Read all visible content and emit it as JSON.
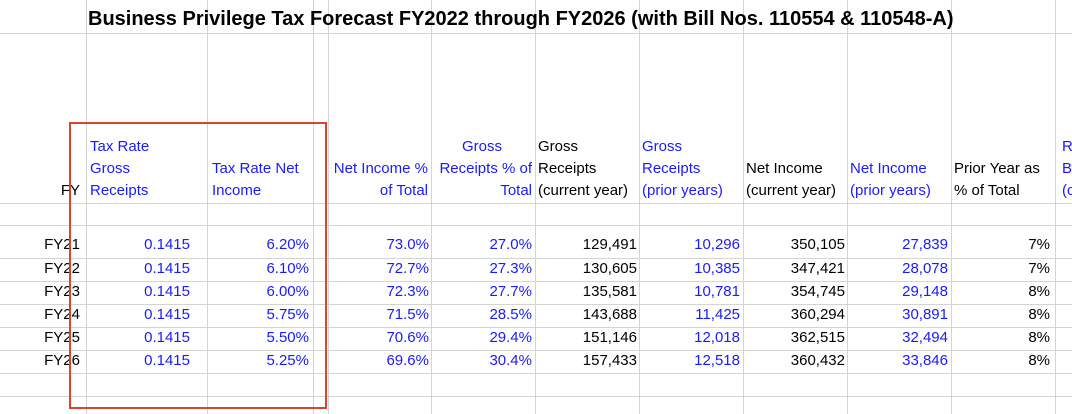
{
  "title": "Business Privilege Tax Forecast FY2022 through FY2026 (with Bill Nos. 110554 & 110548-A)",
  "headers": {
    "fy": "FY",
    "tax_rate_gross_receipts": [
      "Tax Rate",
      "Gross",
      "Receipts"
    ],
    "tax_rate_net_income": [
      "Tax Rate Net",
      "Income"
    ],
    "net_income_pct": [
      "Net Income %",
      "of Total"
    ],
    "gross_receipts_pct": [
      "Gross",
      "Receipts % of",
      "Total"
    ],
    "gross_receipts_current": [
      "Gross",
      "Receipts",
      "(current year)"
    ],
    "gross_receipts_prior": [
      "Gross",
      "Receipts",
      "(prior years)"
    ],
    "net_income_current": [
      "Net Income",
      "(current year)"
    ],
    "net_income_prior": [
      "Net Income",
      "(prior years)"
    ],
    "prior_year_pct": [
      "Prior Year as",
      "% of Total"
    ],
    "partial_col": [
      "R",
      "B",
      "(c"
    ]
  },
  "rows": [
    {
      "fy": "FY21",
      "tr_gross": "0.1415",
      "tr_net": "6.20%",
      "ni_pct": "73.0%",
      "gr_pct": "27.0%",
      "gr_cur": "129,491",
      "gr_prior": "10,296",
      "ni_cur": "350,105",
      "ni_prior": "27,839",
      "py_pct": "7%"
    },
    {
      "fy": "FY22",
      "tr_gross": "0.1415",
      "tr_net": "6.10%",
      "ni_pct": "72.7%",
      "gr_pct": "27.3%",
      "gr_cur": "130,605",
      "gr_prior": "10,385",
      "ni_cur": "347,421",
      "ni_prior": "28,078",
      "py_pct": "7%"
    },
    {
      "fy": "FY23",
      "tr_gross": "0.1415",
      "tr_net": "6.00%",
      "ni_pct": "72.3%",
      "gr_pct": "27.7%",
      "gr_cur": "135,581",
      "gr_prior": "10,781",
      "ni_cur": "354,745",
      "ni_prior": "29,148",
      "py_pct": "8%"
    },
    {
      "fy": "FY24",
      "tr_gross": "0.1415",
      "tr_net": "5.75%",
      "ni_pct": "71.5%",
      "gr_pct": "28.5%",
      "gr_cur": "143,688",
      "gr_prior": "11,425",
      "ni_cur": "360,294",
      "ni_prior": "30,891",
      "py_pct": "8%"
    },
    {
      "fy": "FY25",
      "tr_gross": "0.1415",
      "tr_net": "5.50%",
      "ni_pct": "70.6%",
      "gr_pct": "29.4%",
      "gr_cur": "151,146",
      "gr_prior": "12,018",
      "ni_cur": "362,515",
      "ni_prior": "32,494",
      "py_pct": "8%"
    },
    {
      "fy": "FY26",
      "tr_gross": "0.1415",
      "tr_net": "5.25%",
      "ni_pct": "69.6%",
      "gr_pct": "30.4%",
      "gr_cur": "157,433",
      "gr_prior": "12,518",
      "ni_cur": "360,432",
      "ni_prior": "33,846",
      "py_pct": "8%"
    }
  ],
  "colors": {
    "input_blue": "#1a1aff",
    "highlight_border": "#d9442c",
    "gridline": "#d4d4d4"
  }
}
